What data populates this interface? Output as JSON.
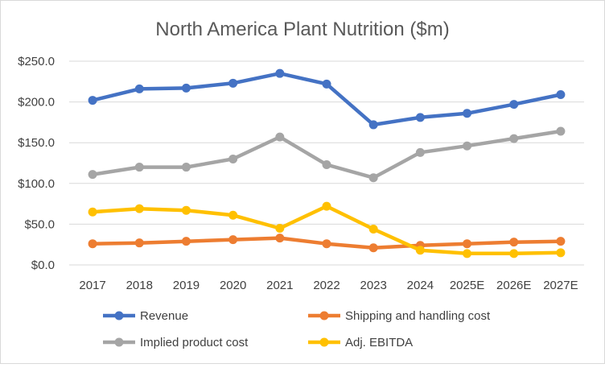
{
  "chart_data": {
    "type": "line",
    "title": "North America Plant Nutrition ($m)",
    "xlabel": "",
    "ylabel": "",
    "categories": [
      "2017",
      "2018",
      "2019",
      "2020",
      "2021",
      "2022",
      "2023",
      "2024",
      "2025E",
      "2026E",
      "2027E"
    ],
    "ylim": [
      0,
      250
    ],
    "yticks": [
      0,
      50,
      100,
      150,
      200,
      250
    ],
    "ytick_labels": [
      "$0.0",
      "$50.0",
      "$100.0",
      "$150.0",
      "$200.0",
      "$250.0"
    ],
    "grid": "horizontal",
    "legend_position": "bottom",
    "series": [
      {
        "name": "Revenue",
        "color": "#4472C4",
        "values": [
          202,
          216,
          217,
          223,
          235,
          222,
          172,
          181,
          186,
          197,
          209
        ]
      },
      {
        "name": "Shipping and handling cost",
        "color": "#ED7D31",
        "values": [
          26,
          27,
          29,
          31,
          33,
          26,
          21,
          24,
          26,
          28,
          29
        ]
      },
      {
        "name": "Implied product cost",
        "color": "#A5A5A5",
        "values": [
          111,
          120,
          120,
          130,
          157,
          123,
          107,
          138,
          146,
          155,
          164
        ]
      },
      {
        "name": "Adj. EBITDA",
        "color": "#FFC000",
        "values": [
          65,
          69,
          67,
          61,
          45,
          72,
          44,
          18,
          14,
          14,
          15
        ]
      }
    ]
  }
}
